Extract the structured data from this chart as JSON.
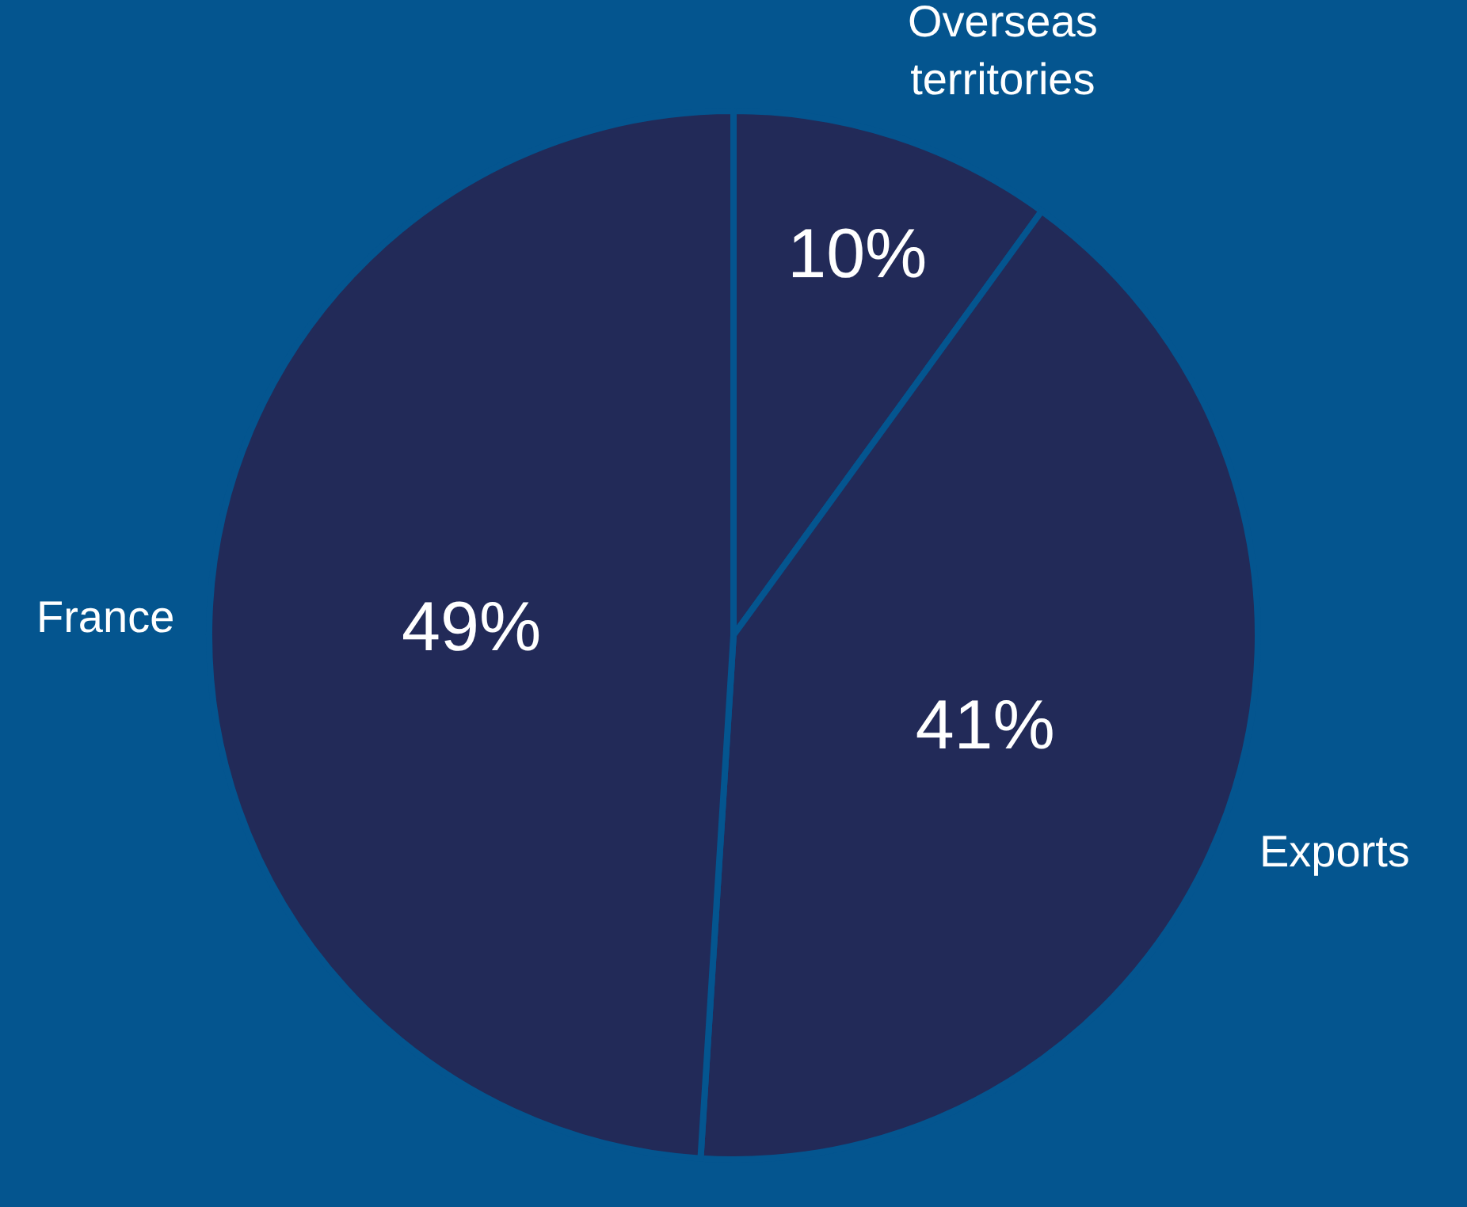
{
  "chart_data": {
    "type": "pie",
    "categories": [
      "Overseas territories",
      "Exports",
      "France"
    ],
    "values": [
      10,
      41,
      49
    ],
    "value_labels": [
      "10%",
      "41%",
      "49%"
    ],
    "colors": [
      "#222a58",
      "#222a58",
      "#222a58"
    ]
  }
}
